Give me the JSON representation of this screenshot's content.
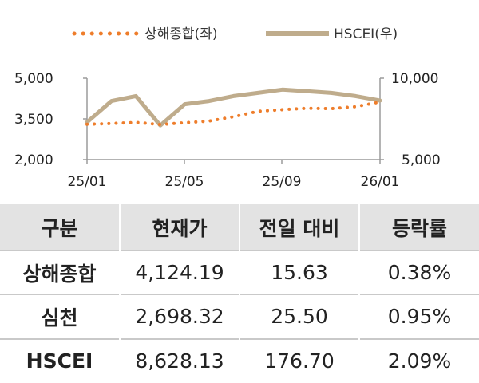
{
  "chart_data": {
    "type": "line",
    "legend": [
      {
        "name": "상해종합(좌)",
        "style": "dotted",
        "color": "#ee7d2b"
      },
      {
        "name": "HSCEI(우)",
        "style": "solid",
        "color": "#bfac8c"
      }
    ],
    "legend_placement": "top-center",
    "x_ticks": [
      "25/01",
      "25/05",
      "25/09",
      "26/01"
    ],
    "left_axis": {
      "ticks": [
        "5,000",
        "3,500",
        "2,000"
      ],
      "range": [
        2000,
        5000
      ]
    },
    "right_axis": {
      "ticks": [
        "10,000",
        "5,000"
      ],
      "range": [
        5000,
        10000
      ]
    },
    "grid": false,
    "series": [
      {
        "name": "상해종합(좌)",
        "axis": "left",
        "color": "#ee7d2b",
        "x": [
          "25/01",
          "25/02",
          "25/03",
          "25/04",
          "25/05",
          "25/06",
          "25/07",
          "25/08",
          "25/09",
          "25/10",
          "25/11",
          "25/12",
          "26/01"
        ],
        "values": [
          3300,
          3330,
          3370,
          3290,
          3360,
          3420,
          3580,
          3780,
          3840,
          3890,
          3880,
          3950,
          4124.19
        ]
      },
      {
        "name": "HSCEI(우)",
        "axis": "right",
        "color": "#bfac8c",
        "x": [
          "25/01",
          "25/02",
          "25/03",
          "25/04",
          "25/05",
          "25/06",
          "25/07",
          "25/08",
          "25/09",
          "25/10",
          "25/11",
          "25/12",
          "26/01"
        ],
        "values": [
          7300,
          8600,
          8900,
          7100,
          8400,
          8600,
          8900,
          9100,
          9300,
          9200,
          9100,
          8900,
          8628.13
        ]
      }
    ]
  },
  "table": {
    "headers": [
      "구분",
      "현재가",
      "전일 대비",
      "등락률"
    ],
    "rows": [
      {
        "name": "상해종합",
        "price": "4,124.19",
        "change": "15.63",
        "rate": "0.38%"
      },
      {
        "name": "심천",
        "price": "2,698.32",
        "change": "25.50",
        "rate": "0.95%"
      },
      {
        "name": "HSCEI",
        "price": "8,628.13",
        "change": "176.70",
        "rate": "2.09%"
      }
    ]
  }
}
